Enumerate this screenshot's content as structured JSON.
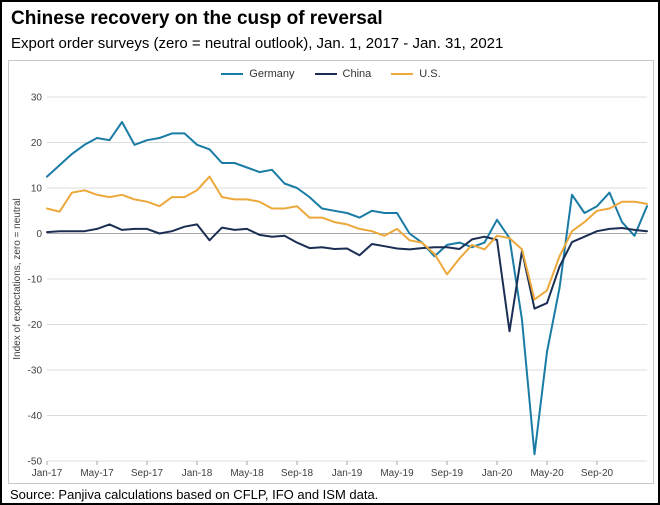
{
  "header": {
    "title": "Chinese recovery on the cusp of reversal",
    "subtitle": "Export order surveys (zero = neutral outlook), Jan. 1, 2017 - Jan. 31, 2021"
  },
  "footer": {
    "source": "Source: Panjiva calculations based on CFLP, IFO and ISM data."
  },
  "chart_data": {
    "type": "line",
    "title": "Chinese recovery on the cusp of reversal",
    "subtitle": "Export order surveys (zero = neutral outlook), Jan. 1, 2017 - Jan. 31, 2021",
    "ylabel": "Index of expectations, zero = neutral",
    "ylim": [
      -50,
      30
    ],
    "ytick_step": 10,
    "grid": true,
    "legend_position": "top-center",
    "n_points": 49,
    "x_tick_labels": [
      "Jan-17",
      "May-17",
      "Sep-17",
      "Jan-18",
      "May-18",
      "Sep-18",
      "Jan-19",
      "May-19",
      "Sep-19",
      "Jan-20",
      "May-20",
      "Sep-20"
    ],
    "x_tick_indices": [
      0,
      4,
      8,
      12,
      16,
      20,
      24,
      28,
      32,
      36,
      40,
      44
    ],
    "series": [
      {
        "name": "Germany",
        "color": "#1a7ca5",
        "values": [
          12.5,
          15,
          17.5,
          19.5,
          21,
          20.5,
          24.5,
          19.5,
          20.5,
          21,
          22,
          22,
          19.5,
          18.5,
          15.5,
          15.5,
          14.5,
          13.5,
          14,
          11,
          10,
          8,
          5.5,
          5,
          4.5,
          3.5,
          5,
          4.5,
          4.5,
          0,
          -2,
          -5,
          -2.5,
          -2,
          -3,
          -2,
          3,
          -1,
          -19,
          -48.5,
          -26,
          -12,
          8.5,
          4.5,
          6,
          9,
          2.5,
          -0.5,
          6
        ]
      },
      {
        "name": "China",
        "color": "#1b2f54",
        "values": [
          0.3,
          0.5,
          0.5,
          0.5,
          1,
          2,
          0.8,
          1,
          1,
          0,
          0.5,
          1.5,
          2,
          -1.5,
          1.3,
          0.8,
          1,
          -0.3,
          -0.7,
          -0.5,
          -2,
          -3.2,
          -3,
          -3.4,
          -3.3,
          -4.8,
          -2.3,
          -2.8,
          -3.3,
          -3.5,
          -3.2,
          -3,
          -3,
          -3.4,
          -1.3,
          -0.7,
          -1.4,
          -21.5,
          -3.8,
          -16.5,
          -15.3,
          -7.3,
          -1.9,
          -0.7,
          0.5,
          1,
          1.2,
          0.8,
          0.5
        ]
      },
      {
        "name": "U.S.",
        "color": "#eda83b",
        "values": [
          5.5,
          4.8,
          9,
          9.5,
          8.5,
          8,
          8.5,
          7.5,
          7,
          6,
          8,
          8,
          9.5,
          12.5,
          8,
          7.5,
          7.5,
          7,
          5.5,
          5.5,
          6,
          3.5,
          3.5,
          2.5,
          2,
          1,
          0.5,
          -0.5,
          1,
          -1.5,
          -2,
          -4.5,
          -9,
          -5.5,
          -2.5,
          -3.5,
          -0.5,
          -1,
          -3.5,
          -14.5,
          -12.5,
          -5,
          0.5,
          2.5,
          5,
          5.5,
          7,
          7,
          6.5
        ]
      }
    ]
  }
}
